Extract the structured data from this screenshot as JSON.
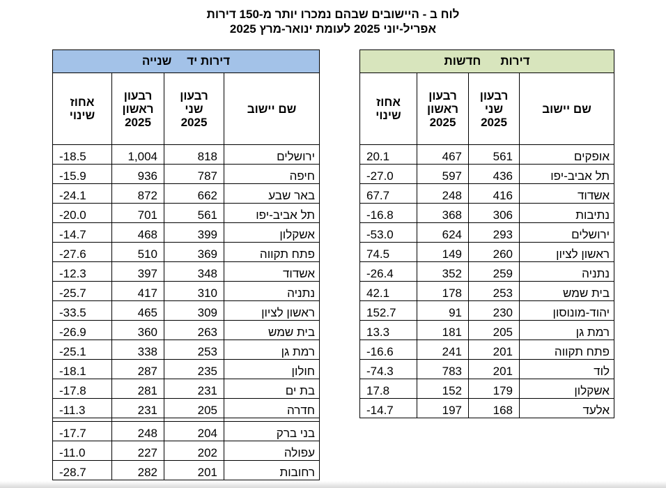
{
  "title": {
    "line1": "לוח ב - היישובים שבהם נמכרו יותר מ-150 דירות",
    "line2": "אפריל-יוני 2025 לעומת ינואר-מרץ 2025"
  },
  "secondhand": {
    "header_word1": "דירות יד",
    "header_word2": "שנייה",
    "columns": {
      "pct": [
        "אחוז",
        "שינוי"
      ],
      "q1": [
        "רבעון",
        "ראשון",
        "2025"
      ],
      "q2": [
        "רבעון",
        "שני",
        "2025"
      ],
      "name": "שם יישוב"
    },
    "rows": [
      {
        "name": "ירושלים",
        "q2": "818",
        "q1": "1,004",
        "pct": "-18.5"
      },
      {
        "name": "חיפה",
        "q2": "787",
        "q1": "936",
        "pct": "-15.9"
      },
      {
        "name": "באר שבע",
        "q2": "662",
        "q1": "872",
        "pct": "-24.1"
      },
      {
        "name": "תל אביב-יפו",
        "q2": "561",
        "q1": "701",
        "pct": "-20.0"
      },
      {
        "name": "אשקלון",
        "q2": "399",
        "q1": "468",
        "pct": "-14.7"
      },
      {
        "name": "פתח תקווה",
        "q2": "369",
        "q1": "510",
        "pct": "-27.6"
      },
      {
        "name": "אשדוד",
        "q2": "348",
        "q1": "397",
        "pct": "-12.3"
      },
      {
        "name": "נתניה",
        "q2": "310",
        "q1": "417",
        "pct": "-25.7"
      },
      {
        "name": "ראשון לציון",
        "q2": "309",
        "q1": "465",
        "pct": "-33.5"
      },
      {
        "name": "בית שמש",
        "q2": "263",
        "q1": "360",
        "pct": "-26.9"
      },
      {
        "name": "רמת גן",
        "q2": "253",
        "q1": "338",
        "pct": "-25.1"
      },
      {
        "name": "חולון",
        "q2": "235",
        "q1": "287",
        "pct": "-18.1"
      },
      {
        "name": "בת ים",
        "q2": "231",
        "q1": "281",
        "pct": "-17.8"
      },
      {
        "name": "חדרה",
        "q2": "205",
        "q1": "231",
        "pct": "-11.3"
      },
      {
        "name": "בני ברק",
        "q2": "204",
        "q1": "248",
        "pct": "-17.7"
      },
      {
        "name": "עפולה",
        "q2": "202",
        "q1": "227",
        "pct": "-11.0"
      },
      {
        "name": "רחובות",
        "q2": "201",
        "q1": "282",
        "pct": "-28.7"
      }
    ]
  },
  "new": {
    "header_word1": "דירות",
    "header_word2": "חדשות",
    "columns": {
      "pct": [
        "אחוז",
        "שינוי"
      ],
      "q1": [
        "רבעון",
        "ראשון",
        "2025"
      ],
      "q2": [
        "רבעון",
        "שני",
        "2025"
      ],
      "name": "שם יישוב"
    },
    "rows": [
      {
        "name": "אופקים",
        "q2": "561",
        "q1": "467",
        "pct": "20.1"
      },
      {
        "name": "תל אביב-יפו",
        "q2": "436",
        "q1": "597",
        "pct": "-27.0"
      },
      {
        "name": "אשדוד",
        "q2": "416",
        "q1": "248",
        "pct": "67.7"
      },
      {
        "name": "נתיבות",
        "q2": "306",
        "q1": "368",
        "pct": "-16.8"
      },
      {
        "name": "ירושלים",
        "q2": "293",
        "q1": "624",
        "pct": "-53.0"
      },
      {
        "name": "ראשון לציון",
        "q2": "260",
        "q1": "149",
        "pct": "74.5"
      },
      {
        "name": "נתניה",
        "q2": "259",
        "q1": "352",
        "pct": "-26.4"
      },
      {
        "name": "בית שמש",
        "q2": "253",
        "q1": "178",
        "pct": "42.1"
      },
      {
        "name": "יהוד-מונוסון",
        "q2": "230",
        "q1": "91",
        "pct": "152.7"
      },
      {
        "name": "רמת גן",
        "q2": "205",
        "q1": "181",
        "pct": "13.3"
      },
      {
        "name": "פתח תקווה",
        "q2": "201",
        "q1": "241",
        "pct": "-16.6"
      },
      {
        "name": "לוד",
        "q2": "201",
        "q1": "783",
        "pct": "-74.3"
      },
      {
        "name": "אשקלון",
        "q2": "179",
        "q1": "152",
        "pct": "17.8"
      },
      {
        "name": "אלעד",
        "q2": "168",
        "q1": "197",
        "pct": "-14.7"
      }
    ]
  }
}
